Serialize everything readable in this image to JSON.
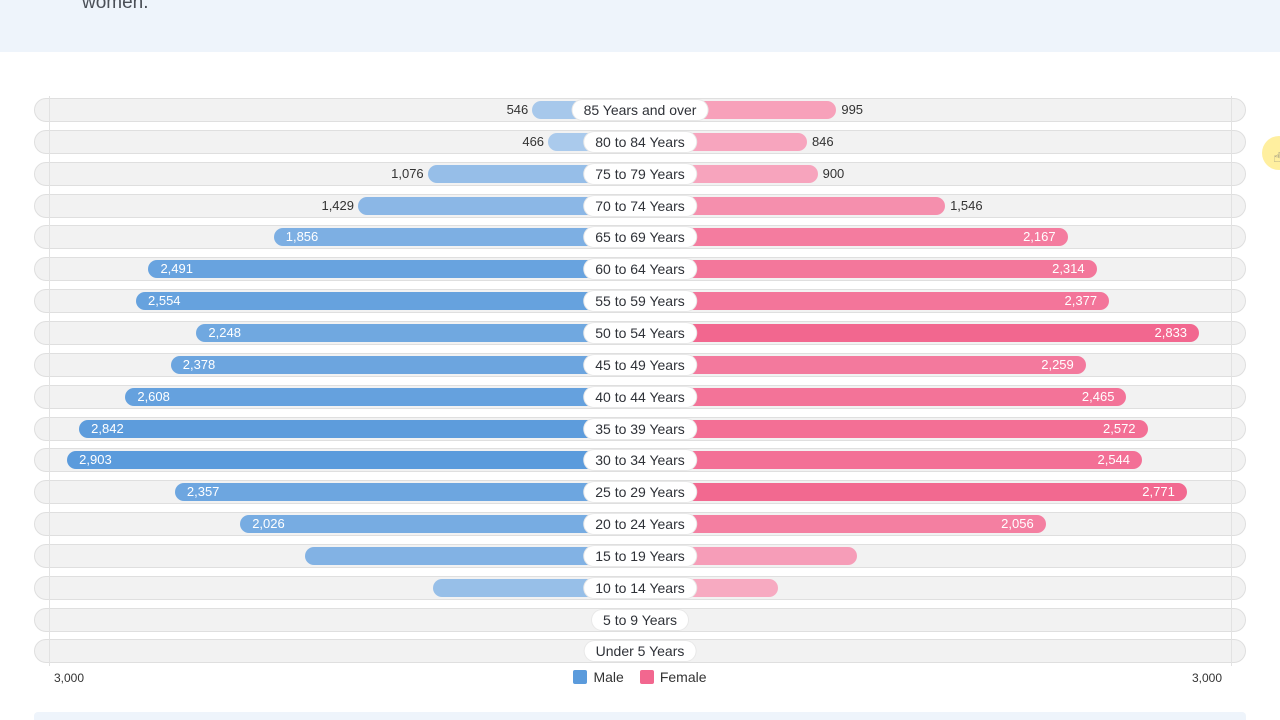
{
  "intro_text": "women.",
  "chart_data": {
    "type": "bar",
    "orientation": "horizontal-butterfly",
    "categories": [
      "85 Years and over",
      "80 to 84 Years",
      "75 to 79 Years",
      "70 to 74 Years",
      "65 to 69 Years",
      "60 to 64 Years",
      "55 to 59 Years",
      "50 to 54 Years",
      "45 to 49 Years",
      "40 to 44 Years",
      "35 to 39 Years",
      "30 to 34 Years",
      "25 to 29 Years",
      "20 to 24 Years",
      "15 to 19 Years",
      "10 to 14 Years",
      "5 to 9 Years",
      "Under 5 Years"
    ],
    "series": [
      {
        "name": "Male",
        "color": "#5b9bdc",
        "values": [
          546,
          466,
          1076,
          1429,
          1856,
          2491,
          2554,
          2248,
          2378,
          2608,
          2842,
          2903,
          2357,
          2026,
          1700,
          1050,
          80,
          0
        ],
        "labels": [
          "546",
          "466",
          "1,076",
          "1,429",
          "1,856",
          "2,491",
          "2,554",
          "2,248",
          "2,378",
          "2,608",
          "2,842",
          "2,903",
          "2,357",
          "2,026",
          "",
          "",
          "",
          ""
        ]
      },
      {
        "name": "Female",
        "color": "#f2678f",
        "values": [
          995,
          846,
          900,
          1546,
          2167,
          2314,
          2377,
          2833,
          2259,
          2465,
          2572,
          2544,
          2771,
          2056,
          1100,
          700,
          0,
          0
        ],
        "labels": [
          "995",
          "846",
          "900",
          "1,546",
          "2,167",
          "2,314",
          "2,377",
          "2,833",
          "2,259",
          "2,465",
          "2,572",
          "2,544",
          "2,771",
          "2,056",
          "",
          "",
          "",
          ""
        ]
      }
    ],
    "xlim": [
      -3000,
      3000
    ],
    "axis_labels": {
      "left": "3,000",
      "right": "3,000"
    },
    "legend": [
      "Male",
      "Female"
    ],
    "legend_position": "bottom-center"
  }
}
